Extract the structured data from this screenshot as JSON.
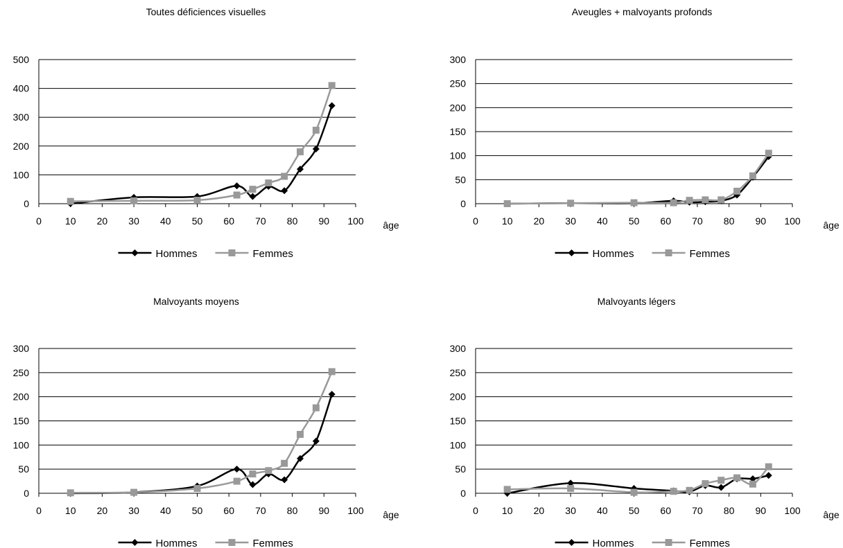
{
  "legend": {
    "series1": "Hommes",
    "series2": "Femmes"
  },
  "xlabel": "âge",
  "colors": {
    "hommes": "#000000",
    "femmes": "#999999",
    "grid": "#000000"
  },
  "chart_data": [
    {
      "type": "line",
      "title": "Toutes déficiences visuelles",
      "xlabel": "âge",
      "xlim": [
        0,
        100
      ],
      "ylim": [
        0,
        500
      ],
      "xticks": [
        0,
        10,
        20,
        30,
        40,
        50,
        60,
        70,
        80,
        90,
        100
      ],
      "yticks": [
        0,
        100,
        200,
        300,
        400,
        500
      ],
      "legend_position": "bottom",
      "series": [
        {
          "name": "Hommes",
          "x": [
            10,
            30,
            50,
            62.5,
            67.5,
            72.5,
            77.5,
            82.5,
            87.5,
            92.5
          ],
          "y": [
            0,
            22,
            25,
            62,
            25,
            60,
            45,
            120,
            190,
            340
          ]
        },
        {
          "name": "Femmes",
          "x": [
            10,
            30,
            50,
            62.5,
            67.5,
            72.5,
            77.5,
            82.5,
            87.5,
            92.5
          ],
          "y": [
            8,
            10,
            12,
            30,
            50,
            72,
            95,
            180,
            255,
            410
          ]
        }
      ]
    },
    {
      "type": "line",
      "title": "Aveugles + malvoyants profonds",
      "xlabel": "âge",
      "xlim": [
        0,
        100
      ],
      "ylim": [
        0,
        300
      ],
      "xticks": [
        0,
        10,
        20,
        30,
        40,
        50,
        60,
        70,
        80,
        90,
        100
      ],
      "yticks": [
        0,
        50,
        100,
        150,
        200,
        250,
        300
      ],
      "legend_position": "bottom",
      "series": [
        {
          "name": "Hommes",
          "x": [
            10,
            30,
            50,
            62.5,
            67.5,
            72.5,
            77.5,
            82.5,
            87.5,
            92.5
          ],
          "y": [
            0,
            1,
            1,
            6,
            3,
            4,
            6,
            18,
            55,
            98
          ]
        },
        {
          "name": "Femmes",
          "x": [
            10,
            30,
            50,
            62.5,
            67.5,
            72.5,
            77.5,
            82.5,
            87.5,
            92.5
          ],
          "y": [
            0,
            1,
            2,
            2,
            7,
            8,
            8,
            26,
            58,
            105
          ]
        }
      ]
    },
    {
      "type": "line",
      "title": "Malvoyants moyens",
      "xlabel": "âge",
      "xlim": [
        0,
        100
      ],
      "ylim": [
        0,
        300
      ],
      "xticks": [
        0,
        10,
        20,
        30,
        40,
        50,
        60,
        70,
        80,
        90,
        100
      ],
      "yticks": [
        0,
        50,
        100,
        150,
        200,
        250,
        300
      ],
      "legend_position": "bottom",
      "series": [
        {
          "name": "Hommes",
          "x": [
            10,
            30,
            50,
            62.5,
            67.5,
            72.5,
            77.5,
            82.5,
            87.5,
            92.5
          ],
          "y": [
            0,
            2,
            15,
            50,
            18,
            40,
            28,
            72,
            108,
            205
          ]
        },
        {
          "name": "Femmes",
          "x": [
            10,
            30,
            50,
            62.5,
            67.5,
            72.5,
            77.5,
            82.5,
            87.5,
            92.5
          ],
          "y": [
            1,
            2,
            10,
            25,
            40,
            47,
            62,
            122,
            177,
            252
          ]
        }
      ]
    },
    {
      "type": "line",
      "title": "Malvoyants légers",
      "xlabel": "âge",
      "xlim": [
        0,
        100
      ],
      "ylim": [
        0,
        300
      ],
      "xticks": [
        0,
        10,
        20,
        30,
        40,
        50,
        60,
        70,
        80,
        90,
        100
      ],
      "yticks": [
        0,
        50,
        100,
        150,
        200,
        250,
        300
      ],
      "legend_position": "bottom",
      "series": [
        {
          "name": "Hommes",
          "x": [
            10,
            30,
            50,
            62.5,
            67.5,
            72.5,
            77.5,
            82.5,
            87.5,
            92.5
          ],
          "y": [
            0,
            21,
            10,
            5,
            3,
            16,
            12,
            30,
            30,
            37
          ]
        },
        {
          "name": "Femmes",
          "x": [
            10,
            30,
            50,
            62.5,
            67.5,
            72.5,
            77.5,
            82.5,
            87.5,
            92.5
          ],
          "y": [
            8,
            10,
            2,
            4,
            6,
            20,
            27,
            32,
            19,
            55
          ]
        }
      ]
    }
  ]
}
